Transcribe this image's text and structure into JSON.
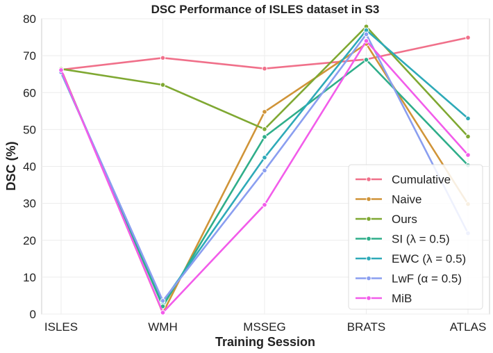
{
  "chart_data": {
    "type": "line",
    "title": "DSC Performance of ISLES dataset in S3",
    "xlabel": "Training Session",
    "ylabel": "DSC (%)",
    "categories": [
      "ISLES",
      "WMH",
      "MSSEG",
      "BRATS",
      "ATLAS"
    ],
    "ylim": [
      0,
      80
    ],
    "yticks": [
      0,
      10,
      20,
      30,
      40,
      50,
      60,
      70,
      80
    ],
    "grid": true,
    "legend_position": "lower-right",
    "series": [
      {
        "name": "Cumulative",
        "label": "Cumulative",
        "color": "#f0708a",
        "values": [
          66.2,
          69.4,
          66.5,
          69.0,
          74.9
        ]
      },
      {
        "name": "Naive",
        "label": "Naive",
        "color": "#d09438",
        "values": [
          66.3,
          0.3,
          54.8,
          73.2,
          29.8
        ]
      },
      {
        "name": "Ours",
        "label": "Ours",
        "color": "#7fa832",
        "values": [
          66.4,
          62.1,
          50.1,
          77.9,
          48.1
        ]
      },
      {
        "name": "SI",
        "label": "SI (λ = 0.5)",
        "color": "#2fae8a",
        "values": [
          65.9,
          2.1,
          48.0,
          68.9,
          40.3
        ]
      },
      {
        "name": "EWC",
        "label": "EWC (λ = 0.5)",
        "color": "#2eaab8",
        "values": [
          65.4,
          3.3,
          42.4,
          76.9,
          53.0
        ]
      },
      {
        "name": "LwF",
        "label": "LwF (α = 0.5)",
        "color": "#8a9ef0",
        "values": [
          65.5,
          3.6,
          38.9,
          75.8,
          21.9
        ]
      },
      {
        "name": "MiB",
        "label": "MiB",
        "color": "#f25cea",
        "values": [
          66.1,
          0.4,
          29.6,
          74.0,
          43.1
        ]
      }
    ]
  }
}
